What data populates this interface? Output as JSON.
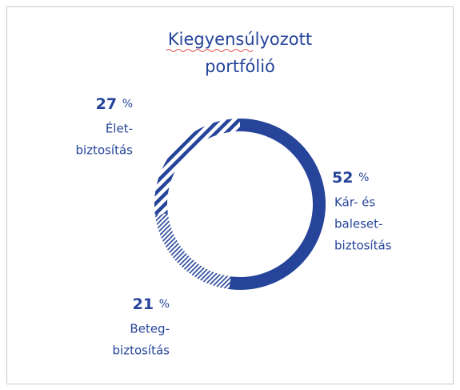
{
  "chart_data": {
    "type": "donut",
    "title": [
      "Kiegyensúlyozott",
      "portfólió"
    ],
    "categories": [
      [
        "Kár- és",
        "baleset-",
        "biztosítás"
      ],
      [
        "Beteg-",
        "biztosítás"
      ],
      [
        "Élet-",
        "biztosítás"
      ]
    ],
    "values": [
      52,
      21,
      27
    ],
    "value_labels": [
      "52 %",
      "21 %",
      "27 %"
    ],
    "color": "#25449a",
    "patterns": [
      "solid",
      "fine-hatch",
      "bold-hatch"
    ]
  }
}
